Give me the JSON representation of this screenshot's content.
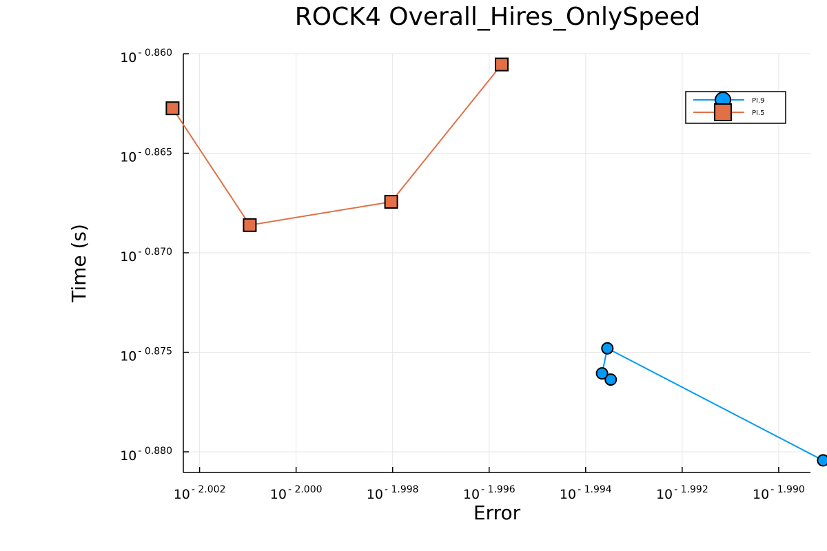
{
  "chart_data": {
    "type": "line",
    "title": "ROCK4 Overall_Hires_OnlySpeed",
    "xlabel": "Error",
    "ylabel": "Time (s)",
    "x_scale": "log10",
    "y_scale": "log10",
    "xlim_exponent": [
      -2.0027,
      -1.9891
    ],
    "ylim_exponent": [
      -0.881,
      -0.86
    ],
    "x_ticks": [
      {
        "base": "10",
        "exp": "- 2.002",
        "value": -2.002
      },
      {
        "base": "10",
        "exp": "- 2.000",
        "value": -2.0
      },
      {
        "base": "10",
        "exp": "- 1.998",
        "value": -1.998
      },
      {
        "base": "10",
        "exp": "- 1.996",
        "value": -1.996
      },
      {
        "base": "10",
        "exp": "- 1.994",
        "value": -1.994
      },
      {
        "base": "10",
        "exp": "- 1.992",
        "value": -1.992
      },
      {
        "base": "10",
        "exp": "- 1.990",
        "value": -1.99
      }
    ],
    "y_ticks": [
      {
        "base": "10",
        "exp": "- 0.860",
        "value": -0.86
      },
      {
        "base": "10",
        "exp": "- 0.865",
        "value": -0.865
      },
      {
        "base": "10",
        "exp": "- 0.870",
        "value": -0.87
      },
      {
        "base": "10",
        "exp": "- 0.875",
        "value": -0.875
      },
      {
        "base": "10",
        "exp": "- 0.880",
        "value": -0.88
      }
    ],
    "grid": true,
    "legend_position": "top-right",
    "series": [
      {
        "name": "PI.9",
        "color": "#009af9",
        "marker": "circle",
        "x": [
          -1.99348,
          -1.99366,
          -1.99355,
          -1.98908
        ],
        "y": [
          -0.87637,
          -0.87606,
          -0.8748,
          -0.88043
        ]
      },
      {
        "name": "PI.5",
        "color": "#e26f46",
        "marker": "square",
        "x": [
          -2.00256,
          -2.00096,
          -1.99803,
          -1.99574
        ],
        "y": [
          -0.86274,
          -0.86861,
          -0.86744,
          -0.86054
        ]
      }
    ]
  }
}
